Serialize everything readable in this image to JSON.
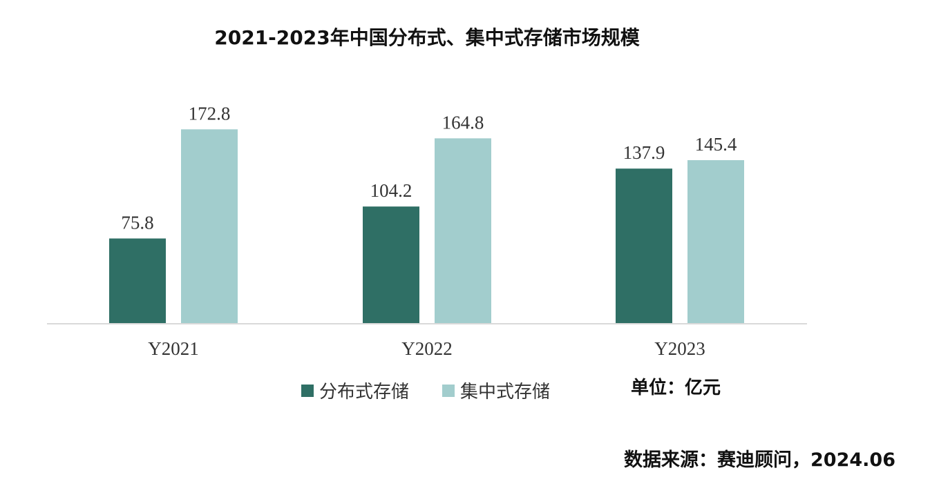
{
  "chart_data": {
    "type": "bar",
    "title": "2021-2023年中国分布式、集中式存储市场规模",
    "categories": [
      "Y2021",
      "Y2022",
      "Y2023"
    ],
    "series": [
      {
        "name": "分布式存储",
        "values": [
          75.8,
          104.2,
          137.9
        ],
        "labels": [
          "75.8",
          "104.2",
          "137.9"
        ],
        "color": "#2f6f65"
      },
      {
        "name": "集中式存储",
        "values": [
          172.8,
          164.8,
          145.4
        ],
        "labels": [
          "172.8",
          "164.8",
          "145.4"
        ],
        "color": "#a2cdcd"
      }
    ],
    "ylim": [
      0,
      200
    ],
    "grid": false,
    "legend": "bottom",
    "unit": "单位：亿元",
    "source": "数据来源：赛迪顾问，2024.06"
  }
}
